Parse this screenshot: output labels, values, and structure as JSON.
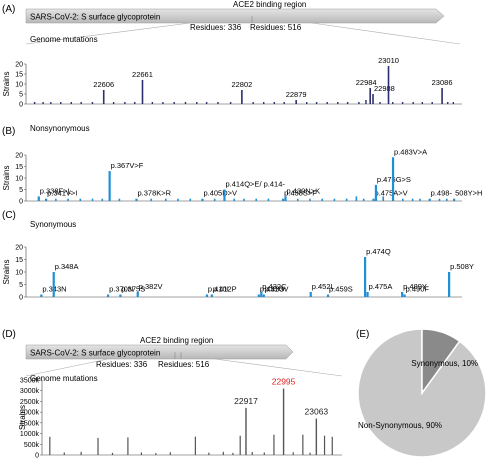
{
  "panel_labels": [
    "(A)",
    "(B)",
    "(C)",
    "(D)",
    "(E)"
  ],
  "protein_bar": {
    "label": "SARS-CoV-2: S surface glycoprotein",
    "region_label": "ACE2 binding region",
    "start_label": "Residues: 336",
    "end_label": "Residues: 516"
  },
  "colors": {
    "navy": "#2b2f6e",
    "blue": "#1f8fd6",
    "gray_bar": "#555555",
    "arrow_fill": "#c8c8c8",
    "pie_non": "#c8c8c8",
    "pie_syn": "#8a8a8a",
    "highlight": "#e02020"
  },
  "chart_data": [
    {
      "type": "bar",
      "panel": "(A)",
      "title": "Genome mutations",
      "xlabel": "",
      "ylabel": "Strains",
      "ylim": [
        0,
        20
      ],
      "yticks": [
        0,
        5,
        10,
        15,
        20
      ],
      "xlim": [
        22500,
        23110
      ],
      "labeled": [
        {
          "x": 22606,
          "value": 7,
          "label": "22606"
        },
        {
          "x": 22661,
          "value": 12,
          "label": "22661"
        },
        {
          "x": 22802,
          "value": 7,
          "label": "22802"
        },
        {
          "x": 22879,
          "value": 2,
          "label": "22879"
        },
        {
          "x": 22984,
          "value": 8,
          "label": "22984"
        },
        {
          "x": 22988,
          "value": 5,
          "label": "22988"
        },
        {
          "x": 23010,
          "value": 19,
          "label": "23010"
        },
        {
          "x": 23086,
          "value": 8,
          "label": "23086"
        }
      ],
      "unlabeled": [
        {
          "x": 22508,
          "value": 1
        },
        {
          "x": 22520,
          "value": 1
        },
        {
          "x": 22531,
          "value": 1
        },
        {
          "x": 22545,
          "value": 1
        },
        {
          "x": 22560,
          "value": 1
        },
        {
          "x": 22574,
          "value": 1
        },
        {
          "x": 22590,
          "value": 1
        },
        {
          "x": 22620,
          "value": 1
        },
        {
          "x": 22636,
          "value": 1
        },
        {
          "x": 22650,
          "value": 1
        },
        {
          "x": 22675,
          "value": 1
        },
        {
          "x": 22690,
          "value": 1
        },
        {
          "x": 22706,
          "value": 1
        },
        {
          "x": 22722,
          "value": 1
        },
        {
          "x": 22738,
          "value": 1
        },
        {
          "x": 22752,
          "value": 1
        },
        {
          "x": 22768,
          "value": 1
        },
        {
          "x": 22786,
          "value": 1
        },
        {
          "x": 22818,
          "value": 1
        },
        {
          "x": 22833,
          "value": 1
        },
        {
          "x": 22848,
          "value": 1
        },
        {
          "x": 22862,
          "value": 1
        },
        {
          "x": 22894,
          "value": 1
        },
        {
          "x": 22908,
          "value": 1
        },
        {
          "x": 22923,
          "value": 1
        },
        {
          "x": 22938,
          "value": 1
        },
        {
          "x": 22952,
          "value": 1
        },
        {
          "x": 22968,
          "value": 1
        },
        {
          "x": 22978,
          "value": 2
        },
        {
          "x": 22998,
          "value": 1
        },
        {
          "x": 23016,
          "value": 1
        },
        {
          "x": 23030,
          "value": 1
        },
        {
          "x": 23045,
          "value": 1
        },
        {
          "x": 23058,
          "value": 1
        },
        {
          "x": 23072,
          "value": 1
        },
        {
          "x": 23094,
          "value": 1
        },
        {
          "x": 23102,
          "value": 1
        }
      ]
    },
    {
      "type": "bar",
      "panel": "(B)",
      "title": "Nonsynonymous",
      "xlabel": "",
      "ylabel": "Strains",
      "ylim": [
        0,
        20
      ],
      "yticks": [
        0,
        5,
        10,
        15,
        20
      ],
      "xlim": [
        334,
        510
      ],
      "bars": [
        {
          "x": 338,
          "value": 2,
          "label": "p.338F>L"
        },
        {
          "x": 341,
          "value": 1,
          "label": "p.341V>I"
        },
        {
          "x": 367,
          "value": 13,
          "label": "p.367V>F"
        },
        {
          "x": 378,
          "value": 1,
          "label": "p.378K>R"
        },
        {
          "x": 405,
          "value": 1,
          "label": "p.405D>V"
        },
        {
          "x": 414,
          "value": 5,
          "label": "p.414Q>E/ p.414-"
        },
        {
          "x": 438,
          "value": 1,
          "label": "p.438S>F"
        },
        {
          "x": 439,
          "value": 2,
          "label": "p.439N>K"
        },
        {
          "x": 475,
          "value": 1,
          "label": "p.475A>V"
        },
        {
          "x": 476,
          "value": 7,
          "label": "p.476G>S"
        },
        {
          "x": 483,
          "value": 19,
          "label": "p.483V>A"
        },
        {
          "x": 498,
          "value": 1,
          "label": "p.498-"
        },
        {
          "x": 508,
          "value": 1,
          "label": "508Y>H"
        }
      ],
      "unlabeled": [
        {
          "x": 345,
          "value": 1
        },
        {
          "x": 350,
          "value": 1
        },
        {
          "x": 355,
          "value": 1
        },
        {
          "x": 360,
          "value": 1
        },
        {
          "x": 364,
          "value": 1
        },
        {
          "x": 371,
          "value": 1
        },
        {
          "x": 384,
          "value": 1
        },
        {
          "x": 390,
          "value": 1
        },
        {
          "x": 395,
          "value": 1
        },
        {
          "x": 400,
          "value": 1
        },
        {
          "x": 410,
          "value": 1
        },
        {
          "x": 418,
          "value": 1
        },
        {
          "x": 422,
          "value": 1
        },
        {
          "x": 427,
          "value": 1
        },
        {
          "x": 432,
          "value": 1
        },
        {
          "x": 444,
          "value": 1
        },
        {
          "x": 449,
          "value": 1
        },
        {
          "x": 454,
          "value": 1
        },
        {
          "x": 459,
          "value": 1
        },
        {
          "x": 464,
          "value": 1
        },
        {
          "x": 468,
          "value": 2
        },
        {
          "x": 471,
          "value": 1
        },
        {
          "x": 479,
          "value": 2
        },
        {
          "x": 487,
          "value": 1
        },
        {
          "x": 491,
          "value": 1
        },
        {
          "x": 494,
          "value": 1
        },
        {
          "x": 502,
          "value": 1
        },
        {
          "x": 505,
          "value": 1
        }
      ]
    },
    {
      "type": "bar",
      "panel": "(C)",
      "title": "Synonymous",
      "xlabel": "",
      "ylabel": "Strains",
      "ylim": [
        0,
        20
      ],
      "yticks": [
        0,
        5,
        10,
        15,
        20
      ],
      "xlim": [
        338,
        512
      ],
      "bars": [
        {
          "x": 343,
          "value": 1,
          "label": "p.343N"
        },
        {
          "x": 348,
          "value": 10,
          "label": "p.348A"
        },
        {
          "x": 370,
          "value": 1,
          "label": "p.370N"
        },
        {
          "x": 375,
          "value": 1,
          "label": "p.375S"
        },
        {
          "x": 382,
          "value": 2,
          "label": "p.382V"
        },
        {
          "x": 410,
          "value": 1,
          "label": "p.410I"
        },
        {
          "x": 412,
          "value": 1,
          "label": "p.412P"
        },
        {
          "x": 431,
          "value": 1,
          "label": "p.431G"
        },
        {
          "x": 432,
          "value": 2,
          "label": "p.432C"
        },
        {
          "x": 433,
          "value": 1,
          "label": "p.433V"
        },
        {
          "x": 452,
          "value": 2,
          "label": "p.452L"
        },
        {
          "x": 459,
          "value": 1,
          "label": "p.459S"
        },
        {
          "x": 474,
          "value": 16,
          "label": "p.474Q"
        },
        {
          "x": 475,
          "value": 2,
          "label": "p.475A"
        },
        {
          "x": 489,
          "value": 2,
          "label": "p.489Y"
        },
        {
          "x": 490,
          "value": 1,
          "label": "p.490F"
        },
        {
          "x": 508,
          "value": 10,
          "label": "p.508Y"
        }
      ]
    },
    {
      "type": "bar",
      "panel": "(D)",
      "title": "Genome mutations",
      "xlabel": "",
      "ylabel": "Strains",
      "ylim": [
        0,
        3500
      ],
      "yticks": [
        0,
        500,
        1000,
        1500,
        2000,
        2500,
        3000,
        3500
      ],
      "ytick_labels": [
        "0",
        "500k",
        "1000k",
        "1500k",
        "2000k",
        "2500k",
        "3000k",
        "3500k"
      ],
      "xlim": [
        22500,
        23110
      ],
      "labeled": [
        {
          "x": 22917,
          "value": 2200,
          "label": "22917",
          "highlight": false
        },
        {
          "x": 22995,
          "value": 3100,
          "label": "22995",
          "highlight": true
        },
        {
          "x": 23063,
          "value": 1700,
          "label": "23063",
          "highlight": false
        }
      ],
      "unlabeled": [
        {
          "x": 22510,
          "value": 850
        },
        {
          "x": 22540,
          "value": 120
        },
        {
          "x": 22575,
          "value": 150
        },
        {
          "x": 22610,
          "value": 800
        },
        {
          "x": 22640,
          "value": 100
        },
        {
          "x": 22672,
          "value": 820
        },
        {
          "x": 22700,
          "value": 120
        },
        {
          "x": 22730,
          "value": 90
        },
        {
          "x": 22760,
          "value": 130
        },
        {
          "x": 22812,
          "value": 860
        },
        {
          "x": 22840,
          "value": 110
        },
        {
          "x": 22870,
          "value": 150
        },
        {
          "x": 22890,
          "value": 100
        },
        {
          "x": 22905,
          "value": 900
        },
        {
          "x": 22930,
          "value": 140
        },
        {
          "x": 22955,
          "value": 120
        },
        {
          "x": 22975,
          "value": 950
        },
        {
          "x": 23015,
          "value": 130
        },
        {
          "x": 23035,
          "value": 950
        },
        {
          "x": 23050,
          "value": 110
        },
        {
          "x": 23080,
          "value": 900
        },
        {
          "x": 23096,
          "value": 850
        }
      ]
    },
    {
      "type": "pie",
      "panel": "(E)",
      "slices": [
        {
          "label": "Non-Synonymous, 90%",
          "value": 90
        },
        {
          "label": "Synonymous, 10%",
          "value": 10
        }
      ]
    }
  ]
}
